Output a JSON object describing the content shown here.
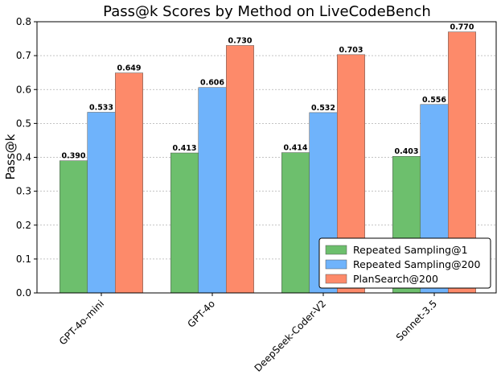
{
  "chart_data": {
    "type": "bar",
    "title": "Pass@k Scores by Method on LiveCodeBench",
    "xlabel": "",
    "ylabel": "Pass@k",
    "ylim": [
      0,
      0.8
    ],
    "yticks": [
      "0.0",
      "0.1",
      "0.2",
      "0.3",
      "0.4",
      "0.5",
      "0.6",
      "0.7",
      "0.8"
    ],
    "grid": true,
    "legend_position": "bottom-right",
    "categories": [
      "GPT-4o-mini",
      "GPT-4o",
      "DeepSeek-Coder-V2",
      "Sonnet-3.5"
    ],
    "series": [
      {
        "name": "Repeated Sampling@1",
        "color": "#6dbf6d",
        "values": [
          0.39,
          0.413,
          0.414,
          0.403
        ],
        "labels": [
          "0.390",
          "0.413",
          "0.414",
          "0.403"
        ]
      },
      {
        "name": "Repeated Sampling@200",
        "color": "#6fb3fb",
        "values": [
          0.533,
          0.606,
          0.532,
          0.556
        ],
        "labels": [
          "0.533",
          "0.606",
          "0.532",
          "0.556"
        ]
      },
      {
        "name": "PlanSearch@200",
        "color": "#fd8a6a",
        "values": [
          0.649,
          0.73,
          0.703,
          0.77
        ],
        "labels": [
          "0.649",
          "0.730",
          "0.703",
          "0.770"
        ]
      }
    ]
  }
}
